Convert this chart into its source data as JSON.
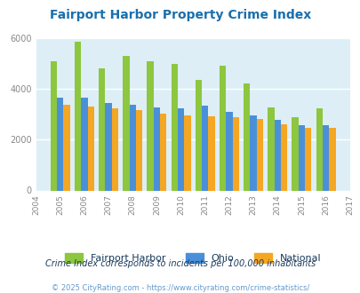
{
  "title": "Fairport Harbor Property Crime Index",
  "years": [
    2004,
    2005,
    2006,
    2007,
    2008,
    2009,
    2010,
    2011,
    2012,
    2013,
    2014,
    2015,
    2016,
    2017
  ],
  "fairport_harbor": [
    null,
    5100,
    5850,
    4820,
    5280,
    5080,
    4980,
    4350,
    4930,
    4230,
    3270,
    2900,
    3250,
    null
  ],
  "ohio": [
    null,
    3650,
    3660,
    3460,
    3380,
    3280,
    3250,
    3330,
    3090,
    2960,
    2790,
    2570,
    2580,
    null
  ],
  "national": [
    null,
    3380,
    3290,
    3230,
    3170,
    3040,
    2960,
    2930,
    2870,
    2820,
    2610,
    2480,
    2450,
    null
  ],
  "bar_width": 0.27,
  "colors": {
    "fairport_harbor": "#8dc63f",
    "ohio": "#4a90d9",
    "national": "#f5a623"
  },
  "bg_color": "#ddeef6",
  "ylim": [
    0,
    6000
  ],
  "yticks": [
    0,
    2000,
    4000,
    6000
  ],
  "note": "Crime Index corresponds to incidents per 100,000 inhabitants",
  "footer": "© 2025 CityRating.com - https://www.cityrating.com/crime-statistics/",
  "title_color": "#1a6fad",
  "note_color": "#1a3a5c",
  "footer_color": "#6699cc",
  "legend_labels": [
    "Fairport Harbor",
    "Ohio",
    "National"
  ]
}
